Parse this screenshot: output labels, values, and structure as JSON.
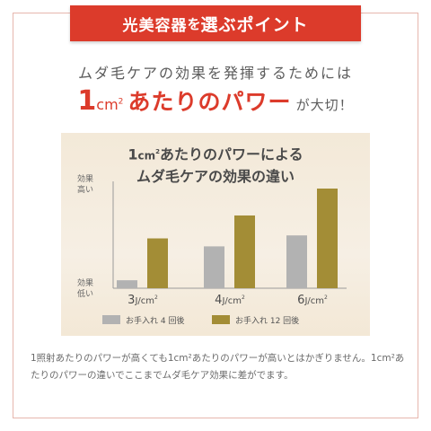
{
  "ribbon": {
    "prefix": "光美容器",
    "particle": "を",
    "highlight": "選ぶポイント"
  },
  "headline": {
    "line1": "ムダ毛ケアの効果を発揮するためには",
    "line2_num": "1",
    "line2_unit": "cm",
    "line2_sup": "2",
    "line2_main": "あたりのパワー",
    "line2_tail": "が大切！"
  },
  "chart_data": {
    "type": "bar",
    "title_line1_num": "1",
    "title_line1_unit": "cm",
    "title_line1_sup": "2",
    "title_line1_rest": "あたりのパワーによる",
    "title_line2": "ムダ毛ケアの効果の違い",
    "y_top_label": [
      "効果",
      "高い"
    ],
    "y_bottom_label": [
      "効果",
      "低い"
    ],
    "categories": [
      {
        "value": "3",
        "unit": "J/cm",
        "sup": "2"
      },
      {
        "value": "4",
        "unit": "J/cm",
        "sup": "2"
      },
      {
        "value": "6",
        "unit": "J/cm",
        "sup": "2"
      }
    ],
    "series": [
      {
        "name": "お手入れ 4 回後",
        "color": "#b2b2b2",
        "values": [
          0.08,
          0.42,
          0.53
        ]
      },
      {
        "name": "お手入れ 12 回後",
        "color": "#a38d36",
        "values": [
          0.5,
          0.73,
          1.0
        ]
      }
    ],
    "ylim": [
      0,
      1
    ],
    "grid": false,
    "legend": "bottom"
  },
  "description": "1照射あたりのパワーが高くても1cm²あたりのパワーが高いとはかぎりません。1cm²あたりのパワーの違いでここまでムダ毛ケア効果に差がでます。",
  "colors": {
    "accent": "#dc3b2b",
    "frame": "#e6b7ae",
    "panel": "#f3e9d8"
  }
}
